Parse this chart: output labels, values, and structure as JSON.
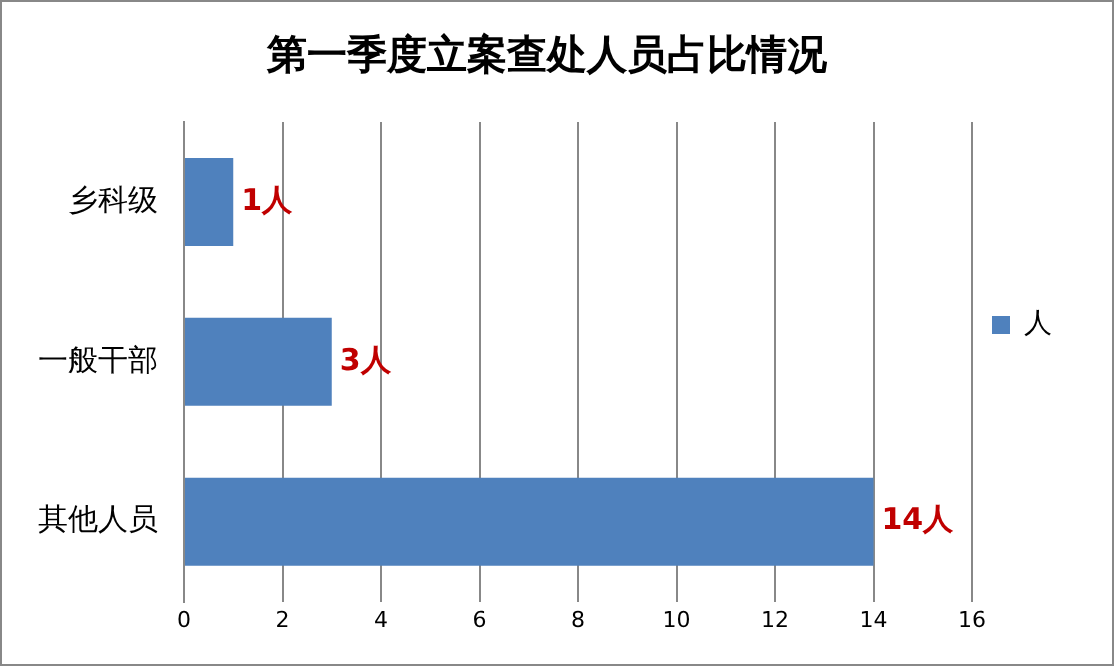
{
  "chart_data": {
    "type": "bar",
    "orientation": "horizontal",
    "title": "第一季度立案查处人员占比情况",
    "categories": [
      "乡科级",
      "一般干部",
      "其他人员"
    ],
    "series": [
      {
        "name": "人",
        "color": "#4f81bd",
        "values": [
          1,
          3,
          14
        ],
        "value_labels": [
          "1人",
          "3人",
          "14人"
        ]
      }
    ],
    "xlim": [
      0,
      16
    ],
    "xticks": [
      0,
      2,
      4,
      6,
      8,
      10,
      12,
      14,
      16
    ],
    "grid": "x",
    "legend": "right"
  }
}
